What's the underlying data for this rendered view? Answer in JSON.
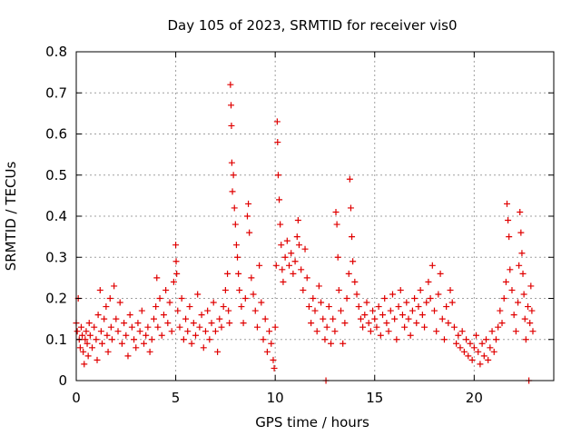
{
  "chart_data": {
    "type": "scatter",
    "title": "Day 105 of 2023, SRMTID for receiver vis0",
    "xlabel": "GPS time / hours",
    "ylabel": "SRMTID / TECUs",
    "xlim": [
      0,
      24
    ],
    "ylim": [
      0,
      0.8
    ],
    "xticks": [
      0,
      5,
      10,
      15,
      20
    ],
    "yticks": [
      0,
      0.1,
      0.2,
      0.3,
      0.4,
      0.5,
      0.6,
      0.7,
      0.8
    ],
    "xtick_labels": [
      "0",
      "5",
      "10",
      "15",
      "20"
    ],
    "ytick_labels": [
      "0",
      "0.1",
      "0.2",
      "0.3",
      "0.4",
      "0.5",
      "0.6",
      "0.7",
      "0.8"
    ],
    "grid": true,
    "marker": "+",
    "color": "#e00000",
    "series": [
      {
        "name": "SRMTID",
        "points": [
          [
            0.0,
            0.14
          ],
          [
            0.05,
            0.12
          ],
          [
            0.1,
            0.2
          ],
          [
            0.15,
            0.1
          ],
          [
            0.2,
            0.08
          ],
          [
            0.25,
            0.13
          ],
          [
            0.3,
            0.11
          ],
          [
            0.35,
            0.07
          ],
          [
            0.4,
            0.04
          ],
          [
            0.45,
            0.1
          ],
          [
            0.5,
            0.12
          ],
          [
            0.55,
            0.09
          ],
          [
            0.6,
            0.06
          ],
          [
            0.65,
            0.14
          ],
          [
            0.7,
            0.11
          ],
          [
            0.8,
            0.08
          ],
          [
            0.9,
            0.13
          ],
          [
            1.0,
            0.1
          ],
          [
            1.05,
            0.05
          ],
          [
            1.1,
            0.16
          ],
          [
            1.2,
            0.22
          ],
          [
            1.25,
            0.12
          ],
          [
            1.3,
            0.09
          ],
          [
            1.4,
            0.15
          ],
          [
            1.5,
            0.18
          ],
          [
            1.55,
            0.11
          ],
          [
            1.6,
            0.07
          ],
          [
            1.7,
            0.2
          ],
          [
            1.75,
            0.13
          ],
          [
            1.8,
            0.1
          ],
          [
            1.9,
            0.23
          ],
          [
            2.0,
            0.15
          ],
          [
            2.1,
            0.12
          ],
          [
            2.2,
            0.19
          ],
          [
            2.3,
            0.09
          ],
          [
            2.4,
            0.14
          ],
          [
            2.5,
            0.11
          ],
          [
            2.6,
            0.06
          ],
          [
            2.7,
            0.16
          ],
          [
            2.8,
            0.13
          ],
          [
            2.9,
            0.1
          ],
          [
            3.0,
            0.08
          ],
          [
            3.1,
            0.14
          ],
          [
            3.2,
            0.12
          ],
          [
            3.3,
            0.17
          ],
          [
            3.4,
            0.09
          ],
          [
            3.5,
            0.11
          ],
          [
            3.6,
            0.13
          ],
          [
            3.7,
            0.07
          ],
          [
            3.8,
            0.1
          ],
          [
            3.9,
            0.15
          ],
          [
            4.0,
            0.18
          ],
          [
            4.05,
            0.25
          ],
          [
            4.1,
            0.13
          ],
          [
            4.2,
            0.2
          ],
          [
            4.3,
            0.11
          ],
          [
            4.4,
            0.16
          ],
          [
            4.5,
            0.22
          ],
          [
            4.6,
            0.14
          ],
          [
            4.7,
            0.19
          ],
          [
            4.8,
            0.12
          ],
          [
            4.9,
            0.24
          ],
          [
            5.0,
            0.33
          ],
          [
            5.02,
            0.29
          ],
          [
            5.05,
            0.26
          ],
          [
            5.1,
            0.17
          ],
          [
            5.2,
            0.13
          ],
          [
            5.3,
            0.2
          ],
          [
            5.4,
            0.1
          ],
          [
            5.5,
            0.15
          ],
          [
            5.6,
            0.12
          ],
          [
            5.7,
            0.18
          ],
          [
            5.8,
            0.09
          ],
          [
            5.9,
            0.14
          ],
          [
            6.0,
            0.11
          ],
          [
            6.1,
            0.21
          ],
          [
            6.2,
            0.13
          ],
          [
            6.3,
            0.16
          ],
          [
            6.4,
            0.08
          ],
          [
            6.5,
            0.12
          ],
          [
            6.6,
            0.17
          ],
          [
            6.7,
            0.1
          ],
          [
            6.8,
            0.14
          ],
          [
            6.9,
            0.19
          ],
          [
            7.0,
            0.12
          ],
          [
            7.1,
            0.07
          ],
          [
            7.2,
            0.15
          ],
          [
            7.3,
            0.13
          ],
          [
            7.4,
            0.18
          ],
          [
            7.5,
            0.22
          ],
          [
            7.6,
            0.26
          ],
          [
            7.65,
            0.17
          ],
          [
            7.7,
            0.14
          ],
          [
            7.75,
            0.72
          ],
          [
            7.78,
            0.67
          ],
          [
            7.8,
            0.62
          ],
          [
            7.82,
            0.53
          ],
          [
            7.85,
            0.46
          ],
          [
            7.9,
            0.5
          ],
          [
            7.95,
            0.42
          ],
          [
            8.0,
            0.38
          ],
          [
            8.05,
            0.33
          ],
          [
            8.1,
            0.3
          ],
          [
            8.15,
            0.26
          ],
          [
            8.2,
            0.22
          ],
          [
            8.3,
            0.18
          ],
          [
            8.4,
            0.14
          ],
          [
            8.5,
            0.2
          ],
          [
            8.6,
            0.4
          ],
          [
            8.65,
            0.43
          ],
          [
            8.7,
            0.36
          ],
          [
            8.8,
            0.25
          ],
          [
            8.9,
            0.21
          ],
          [
            9.0,
            0.17
          ],
          [
            9.1,
            0.13
          ],
          [
            9.2,
            0.28
          ],
          [
            9.3,
            0.19
          ],
          [
            9.4,
            0.1
          ],
          [
            9.5,
            0.15
          ],
          [
            9.6,
            0.07
          ],
          [
            9.7,
            0.12
          ],
          [
            9.8,
            0.09
          ],
          [
            9.9,
            0.05
          ],
          [
            9.95,
            0.03
          ],
          [
            10.0,
            0.13
          ],
          [
            10.05,
            0.28
          ],
          [
            10.1,
            0.63
          ],
          [
            10.12,
            0.58
          ],
          [
            10.15,
            0.5
          ],
          [
            10.2,
            0.44
          ],
          [
            10.25,
            0.38
          ],
          [
            10.3,
            0.33
          ],
          [
            10.35,
            0.27
          ],
          [
            10.4,
            0.24
          ],
          [
            10.5,
            0.3
          ],
          [
            10.6,
            0.34
          ],
          [
            10.7,
            0.28
          ],
          [
            10.8,
            0.31
          ],
          [
            10.9,
            0.26
          ],
          [
            11.0,
            0.29
          ],
          [
            11.1,
            0.35
          ],
          [
            11.15,
            0.39
          ],
          [
            11.2,
            0.33
          ],
          [
            11.3,
            0.27
          ],
          [
            11.4,
            0.22
          ],
          [
            11.5,
            0.32
          ],
          [
            11.6,
            0.25
          ],
          [
            11.7,
            0.18
          ],
          [
            11.8,
            0.14
          ],
          [
            11.9,
            0.2
          ],
          [
            12.0,
            0.17
          ],
          [
            12.1,
            0.12
          ],
          [
            12.2,
            0.23
          ],
          [
            12.3,
            0.19
          ],
          [
            12.4,
            0.15
          ],
          [
            12.5,
            0.1
          ],
          [
            12.55,
            0.0
          ],
          [
            12.6,
            0.13
          ],
          [
            12.7,
            0.18
          ],
          [
            12.8,
            0.09
          ],
          [
            12.9,
            0.15
          ],
          [
            13.0,
            0.12
          ],
          [
            13.05,
            0.41
          ],
          [
            13.1,
            0.38
          ],
          [
            13.15,
            0.3
          ],
          [
            13.2,
            0.22
          ],
          [
            13.3,
            0.17
          ],
          [
            13.4,
            0.09
          ],
          [
            13.5,
            0.14
          ],
          [
            13.6,
            0.2
          ],
          [
            13.7,
            0.26
          ],
          [
            13.75,
            0.49
          ],
          [
            13.8,
            0.42
          ],
          [
            13.85,
            0.35
          ],
          [
            13.9,
            0.29
          ],
          [
            14.0,
            0.24
          ],
          [
            14.1,
            0.21
          ],
          [
            14.2,
            0.18
          ],
          [
            14.3,
            0.15
          ],
          [
            14.4,
            0.13
          ],
          [
            14.5,
            0.16
          ],
          [
            14.6,
            0.19
          ],
          [
            14.7,
            0.14
          ],
          [
            14.8,
            0.12
          ],
          [
            14.9,
            0.17
          ],
          [
            15.0,
            0.15
          ],
          [
            15.1,
            0.13
          ],
          [
            15.2,
            0.18
          ],
          [
            15.3,
            0.11
          ],
          [
            15.4,
            0.16
          ],
          [
            15.5,
            0.2
          ],
          [
            15.6,
            0.14
          ],
          [
            15.7,
            0.12
          ],
          [
            15.8,
            0.17
          ],
          [
            15.9,
            0.21
          ],
          [
            16.0,
            0.15
          ],
          [
            16.1,
            0.1
          ],
          [
            16.2,
            0.18
          ],
          [
            16.3,
            0.22
          ],
          [
            16.4,
            0.16
          ],
          [
            16.5,
            0.13
          ],
          [
            16.6,
            0.19
          ],
          [
            16.7,
            0.15
          ],
          [
            16.8,
            0.11
          ],
          [
            16.9,
            0.17
          ],
          [
            17.0,
            0.2
          ],
          [
            17.1,
            0.14
          ],
          [
            17.2,
            0.18
          ],
          [
            17.3,
            0.22
          ],
          [
            17.4,
            0.16
          ],
          [
            17.5,
            0.13
          ],
          [
            17.6,
            0.19
          ],
          [
            17.7,
            0.24
          ],
          [
            17.8,
            0.2
          ],
          [
            17.9,
            0.28
          ],
          [
            18.0,
            0.17
          ],
          [
            18.1,
            0.12
          ],
          [
            18.2,
            0.21
          ],
          [
            18.3,
            0.26
          ],
          [
            18.4,
            0.15
          ],
          [
            18.5,
            0.1
          ],
          [
            18.6,
            0.18
          ],
          [
            18.7,
            0.14
          ],
          [
            18.8,
            0.22
          ],
          [
            18.9,
            0.19
          ],
          [
            19.0,
            0.13
          ],
          [
            19.1,
            0.09
          ],
          [
            19.2,
            0.11
          ],
          [
            19.3,
            0.08
          ],
          [
            19.4,
            0.12
          ],
          [
            19.5,
            0.07
          ],
          [
            19.6,
            0.1
          ],
          [
            19.7,
            0.06
          ],
          [
            19.8,
            0.09
          ],
          [
            19.9,
            0.05
          ],
          [
            20.0,
            0.08
          ],
          [
            20.1,
            0.11
          ],
          [
            20.2,
            0.07
          ],
          [
            20.3,
            0.04
          ],
          [
            20.4,
            0.09
          ],
          [
            20.5,
            0.06
          ],
          [
            20.6,
            0.1
          ],
          [
            20.7,
            0.05
          ],
          [
            20.8,
            0.08
          ],
          [
            20.9,
            0.12
          ],
          [
            21.0,
            0.07
          ],
          [
            21.1,
            0.1
          ],
          [
            21.2,
            0.13
          ],
          [
            21.3,
            0.17
          ],
          [
            21.4,
            0.14
          ],
          [
            21.5,
            0.2
          ],
          [
            21.6,
            0.24
          ],
          [
            21.65,
            0.43
          ],
          [
            21.7,
            0.39
          ],
          [
            21.75,
            0.35
          ],
          [
            21.8,
            0.27
          ],
          [
            21.9,
            0.22
          ],
          [
            22.0,
            0.16
          ],
          [
            22.1,
            0.12
          ],
          [
            22.2,
            0.19
          ],
          [
            22.25,
            0.28
          ],
          [
            22.3,
            0.41
          ],
          [
            22.35,
            0.36
          ],
          [
            22.4,
            0.31
          ],
          [
            22.45,
            0.26
          ],
          [
            22.5,
            0.21
          ],
          [
            22.55,
            0.15
          ],
          [
            22.6,
            0.1
          ],
          [
            22.7,
            0.18
          ],
          [
            22.75,
            0.0
          ],
          [
            22.8,
            0.14
          ],
          [
            22.85,
            0.23
          ],
          [
            22.9,
            0.17
          ],
          [
            22.95,
            0.12
          ]
        ]
      }
    ]
  }
}
